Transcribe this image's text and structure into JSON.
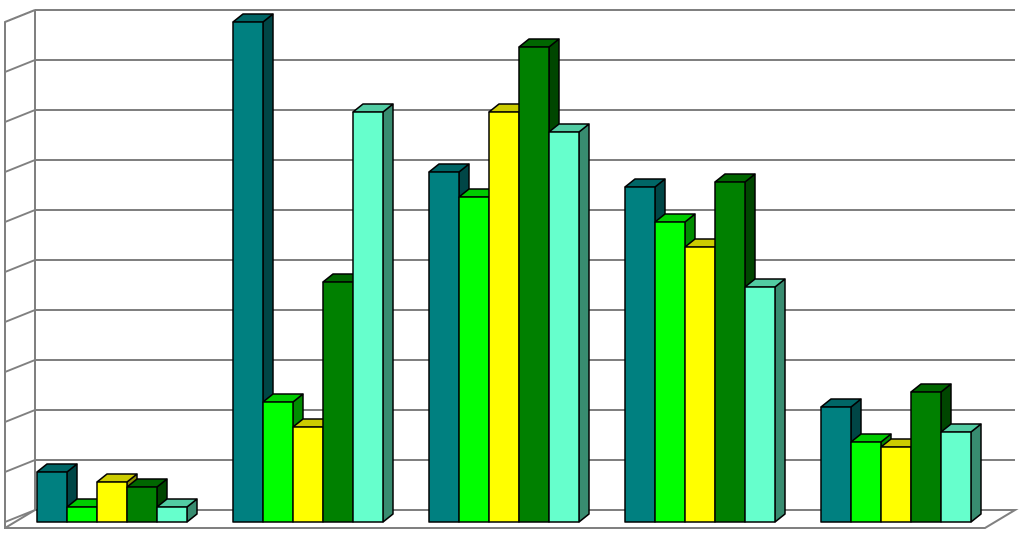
{
  "chart_data": {
    "type": "bar3d",
    "categories": [
      null,
      null,
      null,
      null,
      null
    ],
    "ylim": [
      0,
      10
    ],
    "yticks": [
      0,
      1,
      2,
      3,
      4,
      5,
      6,
      7,
      8,
      9,
      10
    ],
    "grid": true,
    "series": [
      {
        "color": "#008080",
        "values": [
          1.0,
          10.0,
          7.0,
          6.7,
          2.3
        ]
      },
      {
        "color": "#00ff00",
        "values": [
          0.3,
          2.4,
          6.5,
          6.0,
          1.6
        ]
      },
      {
        "color": "#ffff00",
        "values": [
          0.8,
          1.9,
          8.2,
          5.5,
          1.5
        ]
      },
      {
        "color": "#008000",
        "values": [
          0.7,
          4.8,
          9.5,
          6.8,
          2.6
        ]
      },
      {
        "color": "#66ffcc",
        "values": [
          0.3,
          8.2,
          7.8,
          4.7,
          1.8
        ]
      }
    ]
  }
}
